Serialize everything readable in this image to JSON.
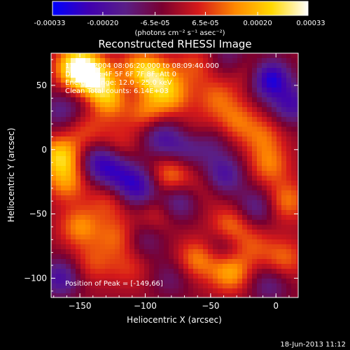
{
  "colorbar": {
    "ticks": [
      {
        "value": -0.00033,
        "label": "-0.00033"
      },
      {
        "value": -0.0002,
        "label": "-0.00020"
      },
      {
        "value": -6.5e-05,
        "label": "-6.5e-05"
      },
      {
        "value": 6.5e-05,
        "label": "6.5e-05"
      },
      {
        "value": 0.0002,
        "label": "0.00020"
      },
      {
        "value": 0.00033,
        "label": "0.00033"
      }
    ],
    "range": [
      -0.00033,
      0.00033
    ],
    "unit_label": "(photons cm⁻² s⁻¹ asec⁻²)",
    "stops": [
      "#0000ff",
      "#4000b0",
      "#5a1f87",
      "#7a0030",
      "#d61a1a",
      "#ff8800",
      "#ffd800",
      "#ffffff"
    ]
  },
  "chart_data": {
    "type": "heatmap",
    "title": "Reconstructed RHESSI Image",
    "xlabel": "Heliocentric X (arcsec)",
    "ylabel": "Heliocentric Y (arcsec)",
    "xlim": [
      -172,
      17
    ],
    "ylim": [
      -115,
      75
    ],
    "x_ticks": [
      {
        "value": -150,
        "label": "−150"
      },
      {
        "value": -100,
        "label": "−100"
      },
      {
        "value": -50,
        "label": "−50"
      },
      {
        "value": 0,
        "label": "0"
      }
    ],
    "y_ticks": [
      {
        "value": 50,
        "label": "50"
      },
      {
        "value": 0,
        "label": "0"
      },
      {
        "value": -50,
        "label": "−50"
      },
      {
        "value": -100,
        "label": "−100"
      }
    ],
    "info_lines": [
      "11-May-2004 08:06:20.000 to 08:09:40.000",
      "Detectors: 4F 5F 6F 7F 8F, Att 0",
      "Energy Range: 12.0 - 25.0 keV",
      "Clean     Total counts: 6.14E+03"
    ],
    "peak_label": "Position of Peak = [-149,66]",
    "peak": [
      -149,
      66
    ],
    "blobs": [
      {
        "x": -152,
        "y": 64,
        "value": 0.00033
      },
      {
        "x": -140,
        "y": 55,
        "value": 0.00026
      },
      {
        "x": -128,
        "y": 40,
        "value": 0.00022
      },
      {
        "x": -105,
        "y": 62,
        "value": 0.00018
      },
      {
        "x": -92,
        "y": 55,
        "value": 0.0002
      },
      {
        "x": -100,
        "y": 30,
        "value": 0.00015
      },
      {
        "x": -80,
        "y": 42,
        "value": 0.00016
      },
      {
        "x": -62,
        "y": 65,
        "value": 0.0001
      },
      {
        "x": -45,
        "y": 40,
        "value": 0.00012
      },
      {
        "x": -30,
        "y": 22,
        "value": 0.00013
      },
      {
        "x": -20,
        "y": 60,
        "value": 9e-05
      },
      {
        "x": -10,
        "y": 10,
        "value": 0.00012
      },
      {
        "x": -5,
        "y": -12,
        "value": 0.00014
      },
      {
        "x": 8,
        "y": -40,
        "value": 0.00015
      },
      {
        "x": 6,
        "y": -85,
        "value": 0.00013
      },
      {
        "x": -165,
        "y": -5,
        "value": 0.00024
      },
      {
        "x": -160,
        "y": -25,
        "value": 0.00016
      },
      {
        "x": -145,
        "y": 15,
        "value": 0.0001
      },
      {
        "x": -150,
        "y": -60,
        "value": 0.00016
      },
      {
        "x": -128,
        "y": -40,
        "value": 0.0001
      },
      {
        "x": -122,
        "y": -68,
        "value": 0.00012
      },
      {
        "x": -140,
        "y": -88,
        "value": 0.0001
      },
      {
        "x": -112,
        "y": -92,
        "value": 8e-05
      },
      {
        "x": -80,
        "y": -20,
        "value": 0.00017
      },
      {
        "x": -92,
        "y": -50,
        "value": 9e-05
      },
      {
        "x": -60,
        "y": -85,
        "value": 0.00016
      },
      {
        "x": -35,
        "y": -60,
        "value": 0.00016
      },
      {
        "x": -35,
        "y": -95,
        "value": 0.0002
      },
      {
        "x": -18,
        "y": -75,
        "value": 0.0001
      },
      {
        "x": -55,
        "y": -30,
        "value": 6e-05
      },
      {
        "x": -60,
        "y": 15,
        "value": 6e-05
      },
      {
        "x": -120,
        "y": 5,
        "value": 8e-05
      },
      {
        "x": -165,
        "y": -100,
        "value": -0.00018
      },
      {
        "x": -165,
        "y": 30,
        "value": -0.00012
      },
      {
        "x": -135,
        "y": -10,
        "value": -0.0002
      },
      {
        "x": -120,
        "y": -20,
        "value": -0.00015
      },
      {
        "x": -105,
        "y": -30,
        "value": -0.0002
      },
      {
        "x": -75,
        "y": -40,
        "value": -0.00016
      },
      {
        "x": -88,
        "y": 10,
        "value": -0.00016
      },
      {
        "x": -70,
        "y": 0,
        "value": -0.00012
      },
      {
        "x": -50,
        "y": 5,
        "value": -0.0001
      },
      {
        "x": -40,
        "y": -20,
        "value": -0.00018
      },
      {
        "x": -15,
        "y": -45,
        "value": -0.00014
      },
      {
        "x": -40,
        "y": -75,
        "value": -0.00012
      },
      {
        "x": -100,
        "y": -70,
        "value": -0.0001
      },
      {
        "x": -80,
        "y": -100,
        "value": -9e-05
      },
      {
        "x": -5,
        "y": -105,
        "value": -0.00012
      },
      {
        "x": -5,
        "y": 55,
        "value": -0.00028
      },
      {
        "x": 12,
        "y": 35,
        "value": -0.00018
      },
      {
        "x": -35,
        "y": 72,
        "value": -0.0001
      },
      {
        "x": -110,
        "y": 45,
        "value": -8e-05
      },
      {
        "x": -145,
        "y": 38,
        "value": -6e-05
      }
    ]
  },
  "footer": {
    "date": "18-Jun-2013 11:12"
  }
}
